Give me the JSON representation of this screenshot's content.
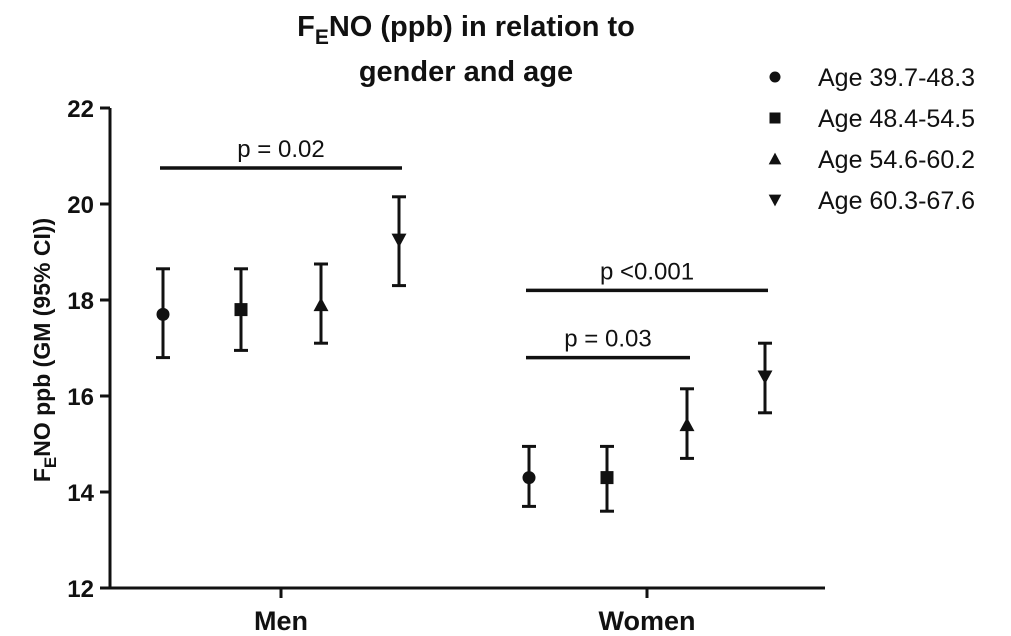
{
  "chart_data": {
    "type": "scatter",
    "title_main": "F",
    "title_sub": "E",
    "title_rest": "NO (ppb) in relation to",
    "title_line2": "gender and age",
    "ylabel_main": "F",
    "ylabel_sub": "E",
    "ylabel_rest": "NO ppb (GM (95% CI))",
    "ylim": [
      12,
      22
    ],
    "yticks": [
      "12",
      "14",
      "16",
      "18",
      "20",
      "22"
    ],
    "categories": [
      "Men",
      "Women"
    ],
    "legend_position": "top-right",
    "series": [
      {
        "name": "Age 39.7-48.3",
        "marker": "circle",
        "values": [
          17.7,
          14.3
        ],
        "lower": [
          16.8,
          13.7
        ],
        "upper": [
          18.65,
          14.95
        ]
      },
      {
        "name": "Age 48.4-54.5",
        "marker": "square",
        "values": [
          17.8,
          14.3
        ],
        "lower": [
          16.95,
          13.6
        ],
        "upper": [
          18.65,
          14.95
        ]
      },
      {
        "name": "Age 54.6-60.2",
        "marker": "triangle-up",
        "values": [
          17.9,
          15.4
        ],
        "lower": [
          17.1,
          14.7
        ],
        "upper": [
          18.75,
          16.15
        ]
      },
      {
        "name": "Age 60.3-67.6",
        "marker": "triangle-down",
        "values": [
          19.25,
          16.4
        ],
        "lower": [
          18.3,
          15.65
        ],
        "upper": [
          20.15,
          17.1
        ]
      }
    ],
    "annotations": [
      {
        "text": "p = 0.02",
        "group": "Men",
        "from_series": 0,
        "to_series": 3,
        "y": 20.75
      },
      {
        "text": "p <0.001",
        "group": "Women",
        "from_series": 0,
        "to_series": 3,
        "y": 18.2
      },
      {
        "text": "p = 0.03",
        "group": "Women",
        "from_series": 0,
        "to_series": 2,
        "y": 16.8
      }
    ],
    "grid": false
  }
}
